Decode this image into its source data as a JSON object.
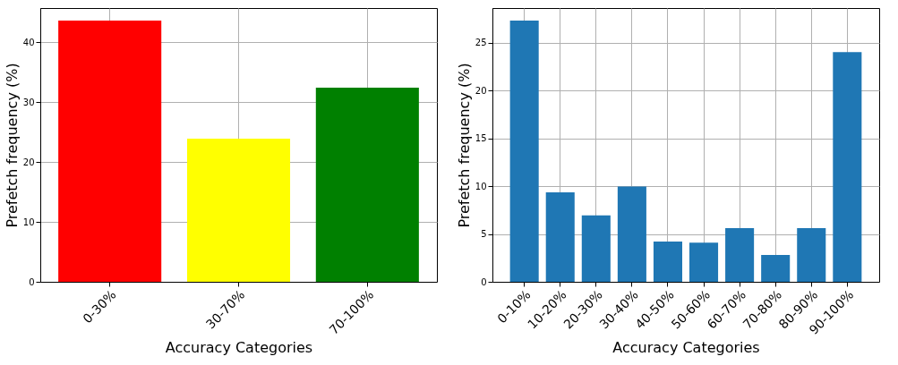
{
  "chart_data": [
    {
      "type": "bar",
      "xlabel": "Accuracy Categories",
      "ylabel": "Prefetch frequency (%)",
      "categories": [
        "0-30%",
        "30-70%",
        "70-100%"
      ],
      "values": [
        43.6,
        23.9,
        32.4
      ],
      "colors": [
        "#ff0000",
        "#ffff00",
        "#008000"
      ],
      "ylim": [
        0,
        45.7
      ],
      "yticks": [
        0,
        10,
        20,
        30,
        40
      ],
      "grid": true
    },
    {
      "type": "bar",
      "xlabel": "Accuracy Categories",
      "ylabel": "Prefetch frequency (%)",
      "categories": [
        "0-10%",
        "10-20%",
        "20-30%",
        "30-40%",
        "40-50%",
        "50-60%",
        "60-70%",
        "70-80%",
        "80-90%",
        "90-100%"
      ],
      "values": [
        27.3,
        9.35,
        6.95,
        9.95,
        4.2,
        4.1,
        5.6,
        2.8,
        5.6,
        24.0
      ],
      "color": "#1f77b4",
      "ylim": [
        0,
        28.6
      ],
      "yticks": [
        0,
        5,
        10,
        15,
        20,
        25
      ],
      "grid": true
    }
  ]
}
